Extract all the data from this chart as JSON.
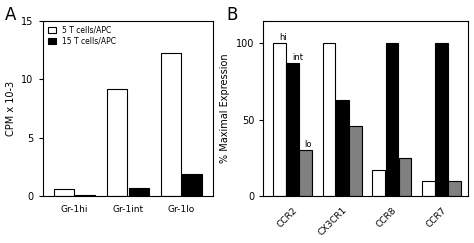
{
  "panel_A": {
    "categories": [
      "Gr-1hi",
      "Gr-1int",
      "Gr-1lo"
    ],
    "series": [
      {
        "label": "5 T cells/APC",
        "color": "white",
        "edgecolor": "black",
        "values": [
          0.6,
          9.2,
          12.2
        ]
      },
      {
        "label": "15 T cells/APC",
        "color": "black",
        "edgecolor": "black",
        "values": [
          0.15,
          0.7,
          1.9
        ]
      }
    ],
    "ylabel": "CPM x 10-3",
    "ylim": [
      0,
      15
    ],
    "yticks": [
      0,
      5,
      10,
      15
    ]
  },
  "panel_B": {
    "categories": [
      "CCR2",
      "CX3CR1",
      "CCR8",
      "CCR7"
    ],
    "series": [
      {
        "label": "hi",
        "color": "white",
        "edgecolor": "black",
        "values": [
          100,
          100,
          17,
          10
        ]
      },
      {
        "label": "int",
        "color": "black",
        "edgecolor": "black",
        "values": [
          87,
          63,
          100,
          100
        ]
      },
      {
        "label": "lo",
        "color": "#808080",
        "edgecolor": "black",
        "values": [
          30,
          46,
          25,
          10
        ]
      }
    ],
    "ylabel": "% Maximal Expression",
    "ylim": [
      0,
      115
    ],
    "yticks": [
      0,
      50,
      100
    ],
    "annotations": [
      {
        "text": "hi",
        "series": 0,
        "cat": 0,
        "value": 100
      },
      {
        "text": "int",
        "series": 1,
        "cat": 0,
        "value": 87
      },
      {
        "text": "lo",
        "series": 2,
        "cat": 0,
        "value": 30
      }
    ]
  },
  "background_color": "white",
  "label_A": "A",
  "label_B": "B"
}
